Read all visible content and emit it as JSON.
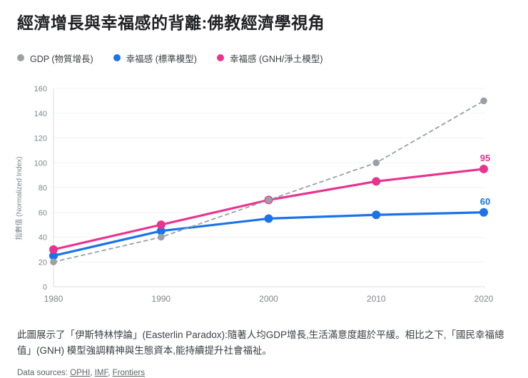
{
  "title": "經濟增長與幸福感的背離:佛教經濟學視角",
  "legend": [
    {
      "label": "GDP (物質增長)",
      "color": "#9aa0a6"
    },
    {
      "label": "幸福感 (標準模型)",
      "color": "#1a73e8"
    },
    {
      "label": "幸福感 (GNH/淨土模型)",
      "color": "#ea338e"
    }
  ],
  "chart_data": {
    "type": "line",
    "x": [
      1980,
      1990,
      2000,
      2010,
      2020
    ],
    "series": [
      {
        "name": "GDP (物質增長)",
        "color": "#9aa0a6",
        "style": "dashed",
        "values": [
          20,
          40,
          70,
          100,
          150
        ]
      },
      {
        "name": "幸福感 (標準模型)",
        "color": "#1a73e8",
        "style": "solid",
        "values": [
          25,
          45,
          55,
          58,
          60
        ],
        "end_label": "60"
      },
      {
        "name": "幸福感 (GNH/淨土模型)",
        "color": "#ea338e",
        "style": "solid",
        "values": [
          30,
          50,
          70,
          85,
          95
        ],
        "end_label": "95"
      }
    ],
    "ylabel": "指數值 (Normalized Index)",
    "ylim": [
      0,
      160
    ],
    "ytick_step": 20,
    "grid": true,
    "legend_position": "top"
  },
  "caption": "此圖展示了「伊斯特林悖論」(Easterlin Paradox):隨著人均GDP增長,生活滿意度趨於平緩。相比之下,「國民幸福總值」(GNH) 模型強調精神與生態資本,能持續提升社會福祉。",
  "sources": {
    "prefix": "Data sources: ",
    "items": [
      {
        "label": "OPHI",
        "sep": ", "
      },
      {
        "label": "IMF",
        "sep": ", "
      },
      {
        "label": "Frontiers",
        "sep": ""
      }
    ]
  }
}
